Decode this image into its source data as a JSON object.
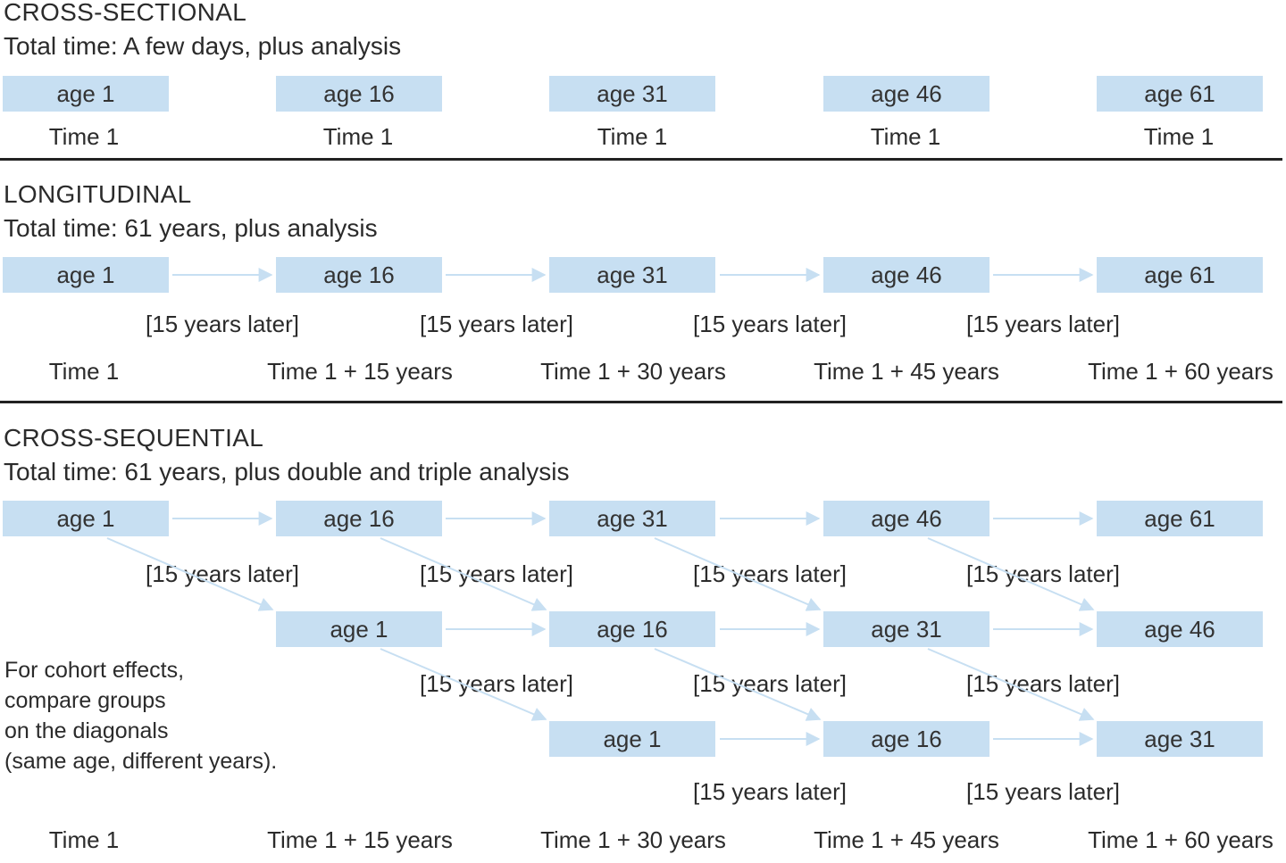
{
  "sections": {
    "cross_sectional": {
      "title": "CROSS-SECTIONAL",
      "total_time": "Total time: A few days, plus analysis",
      "boxes": [
        "age 1",
        "age 16",
        "age 31",
        "age 46",
        "age 61"
      ],
      "times": [
        "Time 1",
        "Time 1",
        "Time 1",
        "Time 1",
        "Time 1"
      ]
    },
    "longitudinal": {
      "title": "LONGITUDINAL",
      "total_time": "Total time: 61 years, plus analysis",
      "boxes": [
        "age 1",
        "age 16",
        "age 31",
        "age 46",
        "age 61"
      ],
      "later": [
        "[15 years later]",
        "[15 years later]",
        "[15 years later]",
        "[15 years later]"
      ],
      "times": [
        "Time 1",
        "Time 1 + 15 years",
        "Time 1 + 30 years",
        "Time 1 + 45 years",
        "Time 1 + 60 years"
      ]
    },
    "cross_sequential": {
      "title": "CROSS-SEQUENTIAL",
      "total_time": "Total time: 61 years, plus double and triple analysis",
      "row1": [
        "age 1",
        "age 16",
        "age 31",
        "age 46",
        "age 61"
      ],
      "row2": [
        "age 1",
        "age 16",
        "age 31",
        "age 46"
      ],
      "row3": [
        "age 1",
        "age 16",
        "age 31"
      ],
      "later_row1": [
        "[15 years later]",
        "[15 years later]",
        "[15 years later]",
        "[15 years later]"
      ],
      "later_row2": [
        "[15 years later]",
        "[15 years later]",
        "[15 years later]"
      ],
      "later_row3": [
        "[15 years later]",
        "[15 years later]"
      ],
      "note": "For cohort effects,\ncompare groups\non the diagonals\n(same age, different years).",
      "times": [
        "Time 1",
        "Time 1 + 15 years",
        "Time 1 + 30 years",
        "Time 1 + 45 years",
        "Time 1 + 60 years"
      ]
    }
  },
  "colors": {
    "box": "#c7dff2",
    "arrow": "#c7dff2",
    "rule": "#222222",
    "text": "#2b2b2b"
  }
}
